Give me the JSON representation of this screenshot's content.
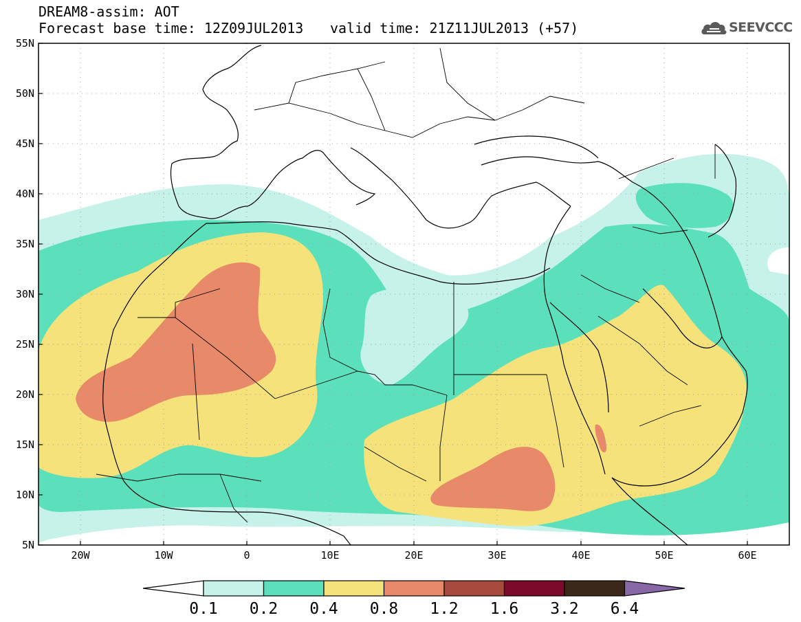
{
  "header": {
    "line1": "DREAM8-assim: AOT",
    "line2": "Forecast base time: 12Z09JUL2013",
    "valid": "valid time: 21Z11JUL2013 (+57)"
  },
  "logo": {
    "icon": "cloud-icon",
    "text": "SEEVCCC"
  },
  "map": {
    "lon_range": [
      -25,
      65
    ],
    "lat_range": [
      5,
      55
    ],
    "lat_ticks": [
      "55N",
      "50N",
      "45N",
      "40N",
      "35N",
      "30N",
      "25N",
      "20N",
      "15N",
      "10N",
      "5N"
    ],
    "lon_ticks": [
      "20W",
      "10W",
      "0",
      "10E",
      "20E",
      "30E",
      "40E",
      "50E",
      "60E"
    ]
  },
  "colorbar": {
    "labels": [
      "0.1",
      "0.2",
      "0.4",
      "0.8",
      "1.2",
      "1.6",
      "3.2",
      "6.4"
    ],
    "colors": [
      "#c6f2ea",
      "#5ce0bc",
      "#f5e27a",
      "#e88a6a",
      "#a94a3e",
      "#7c0a2a",
      "#3c2818",
      "#8a68a8"
    ]
  }
}
